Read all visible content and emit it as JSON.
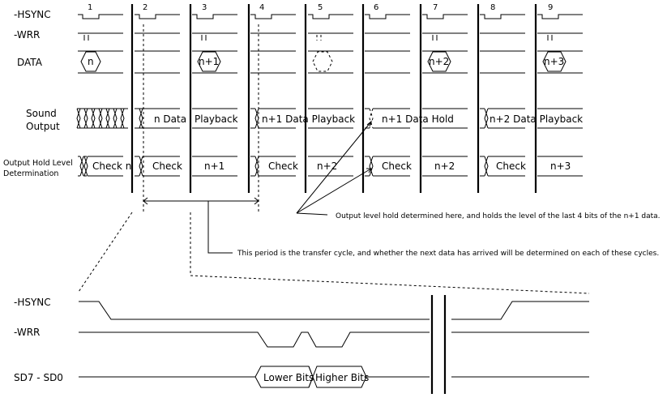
{
  "top": {
    "signals": {
      "hsync": "-HSYNC",
      "wrr": "-WRR",
      "data": "DATA",
      "sound_output": [
        "Sound",
        "Output"
      ],
      "hold_level": [
        "Output Hold Level",
        "Determination"
      ]
    },
    "cycle_numbers": [
      "1",
      "2",
      "3",
      "4",
      "5",
      "6",
      "7",
      "8",
      "9"
    ],
    "data_values": [
      "n",
      "n+1",
      "n+2",
      "n+3"
    ],
    "sound_labels": [
      "n Data",
      "Playback",
      "n+1 Data Playback",
      "n+1 Data Hold",
      "n+2 Data Playback"
    ],
    "hold_labels": [
      "Check n",
      "Check",
      "n+1",
      "Check",
      "n+2",
      "Check",
      "n+2",
      "Check",
      "n+3"
    ],
    "annotations": {
      "hold_note": "Output level hold determined here, and holds the level of the last 4 bits of the n+1 data.",
      "period_note": "This period is the transfer cycle, and whether the next data has arrived will be determined on each of these cycles."
    }
  },
  "bottom": {
    "signals": {
      "hsync": "-HSYNC",
      "wrr": "-WRR",
      "sd": "SD7 - SD0"
    },
    "bus_values": [
      "Lower Bits",
      "Higher Bits"
    ]
  }
}
